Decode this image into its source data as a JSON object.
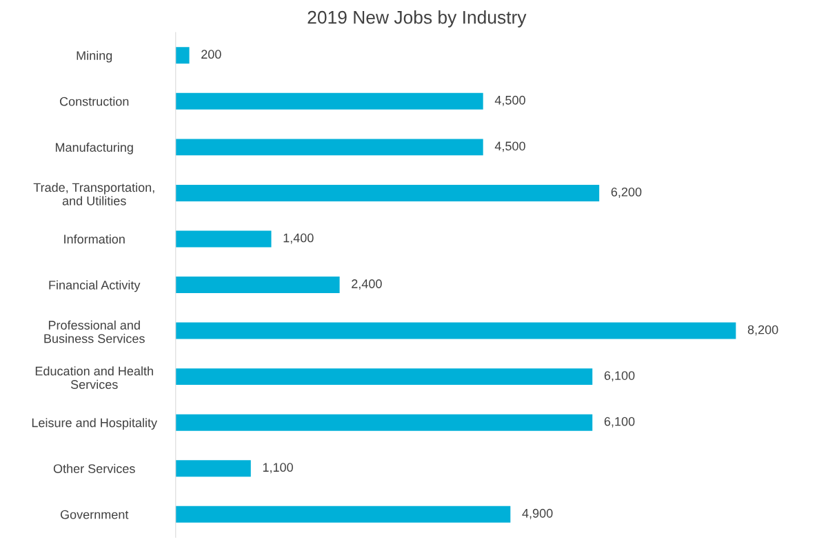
{
  "chart_data": {
    "type": "bar",
    "orientation": "horizontal",
    "title": "2019 New Jobs by Industry",
    "categories": [
      "Mining",
      "Construction",
      "Manufacturing",
      "Trade, Transportation,\nand Utilities",
      "Information",
      "Financial Activity",
      "Professional and\nBusiness Services",
      "Education and Health\nServices",
      "Leisure and Hospitality",
      "Other Services",
      "Government"
    ],
    "values": [
      200,
      4500,
      4500,
      6200,
      1400,
      2400,
      8200,
      6100,
      6100,
      1100,
      4900
    ],
    "value_labels": [
      "200",
      "4,500",
      "4,500",
      "6,200",
      "1,400",
      "2,400",
      "8,200",
      "6,100",
      "6,100",
      "1,100",
      "4,900"
    ],
    "color": "#00b0d8",
    "grid": false,
    "legend": false
  }
}
